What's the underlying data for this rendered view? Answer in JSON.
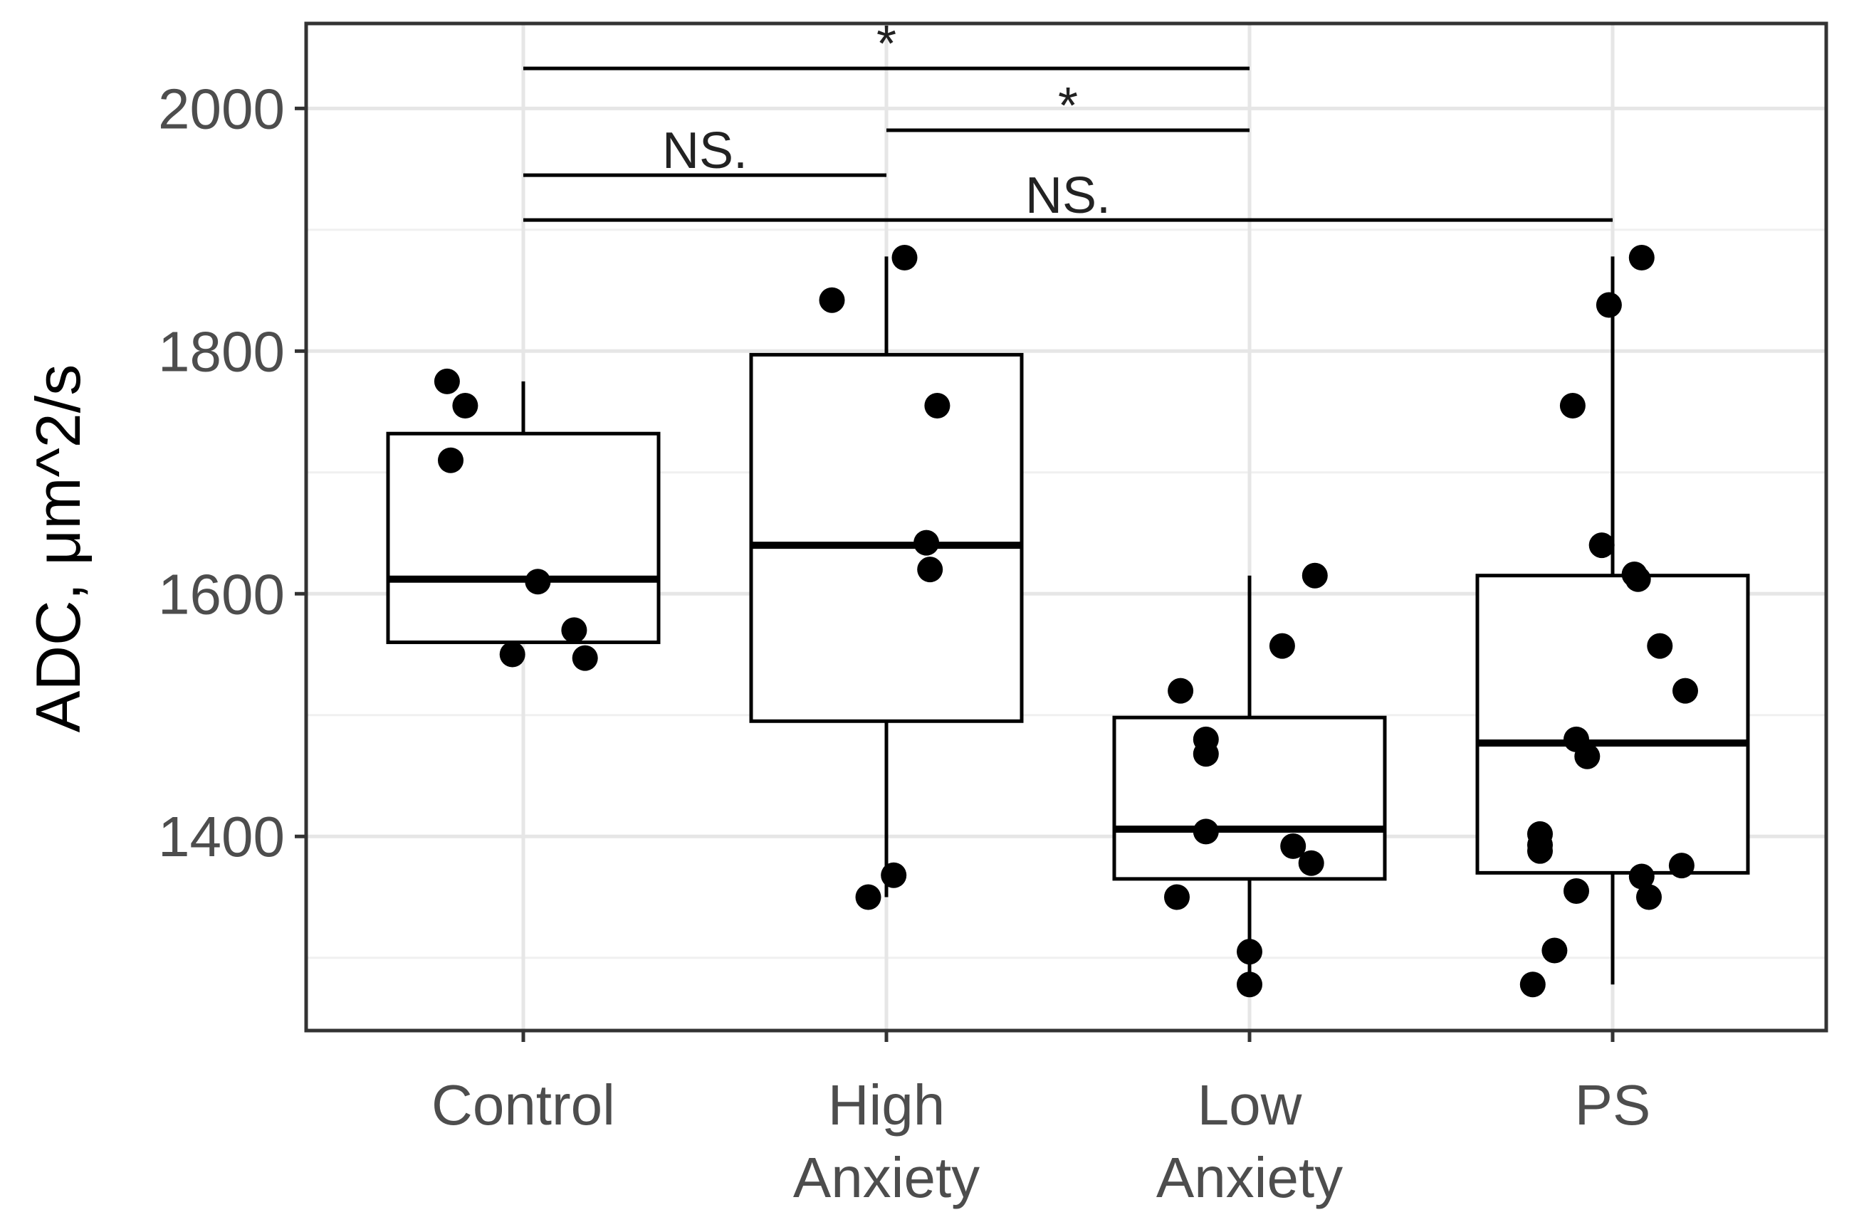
{
  "chart_data": {
    "type": "box",
    "xlabel": "",
    "ylabel": "ADC, μm^2/s",
    "ylim": [
      1240,
      2070
    ],
    "yticks": [
      1400,
      1600,
      1800,
      2000
    ],
    "yminor": [
      1300,
      1500,
      1700,
      1900
    ],
    "grid": true,
    "categories": [
      {
        "key": "control",
        "lines": [
          "Control"
        ]
      },
      {
        "key": "high",
        "lines": [
          "High",
          "Anxiety"
        ]
      },
      {
        "key": "low",
        "lines": [
          "Low",
          "Anxiety"
        ]
      },
      {
        "key": "ps",
        "lines": [
          "PS"
        ]
      }
    ],
    "boxes": [
      {
        "category": "Control",
        "q1": 1560,
        "median": 1612,
        "q3": 1732,
        "whisker_low": 1560,
        "whisker_high": 1775
      },
      {
        "category": "High Anxiety",
        "q1": 1495,
        "median": 1640,
        "q3": 1797,
        "whisker_low": 1350,
        "whisker_high": 1878
      },
      {
        "category": "Low Anxiety",
        "q1": 1365,
        "median": 1406,
        "q3": 1498,
        "whisker_low": 1278,
        "whisker_high": 1615
      },
      {
        "category": "PS",
        "q1": 1370,
        "median": 1477,
        "q3": 1615,
        "whisker_low": 1278,
        "whisker_high": 1878
      }
    ],
    "points": [
      {
        "group": 0,
        "jitter": -0.21,
        "y": 1775
      },
      {
        "group": 0,
        "jitter": -0.16,
        "y": 1755
      },
      {
        "group": 0,
        "jitter": -0.2,
        "y": 1710
      },
      {
        "group": 0,
        "jitter": 0.04,
        "y": 1610
      },
      {
        "group": 0,
        "jitter": 0.14,
        "y": 1570
      },
      {
        "group": 0,
        "jitter": -0.03,
        "y": 1550
      },
      {
        "group": 0,
        "jitter": 0.17,
        "y": 1547
      },
      {
        "group": 1,
        "jitter": 0.05,
        "y": 1877
      },
      {
        "group": 1,
        "jitter": -0.15,
        "y": 1842
      },
      {
        "group": 1,
        "jitter": 0.14,
        "y": 1755
      },
      {
        "group": 1,
        "jitter": 0.11,
        "y": 1642
      },
      {
        "group": 1,
        "jitter": 0.12,
        "y": 1620
      },
      {
        "group": 1,
        "jitter": 0.02,
        "y": 1368
      },
      {
        "group": 1,
        "jitter": -0.05,
        "y": 1350
      },
      {
        "group": 2,
        "jitter": 0.18,
        "y": 1615
      },
      {
        "group": 2,
        "jitter": 0.09,
        "y": 1557
      },
      {
        "group": 2,
        "jitter": -0.19,
        "y": 1520
      },
      {
        "group": 2,
        "jitter": -0.12,
        "y": 1480
      },
      {
        "group": 2,
        "jitter": -0.12,
        "y": 1468
      },
      {
        "group": 2,
        "jitter": -0.12,
        "y": 1404
      },
      {
        "group": 2,
        "jitter": 0.12,
        "y": 1392
      },
      {
        "group": 2,
        "jitter": 0.17,
        "y": 1378
      },
      {
        "group": 2,
        "jitter": -0.2,
        "y": 1350
      },
      {
        "group": 2,
        "jitter": 0.0,
        "y": 1305
      },
      {
        "group": 2,
        "jitter": 0.0,
        "y": 1278
      },
      {
        "group": 3,
        "jitter": 0.08,
        "y": 1877
      },
      {
        "group": 3,
        "jitter": -0.01,
        "y": 1838
      },
      {
        "group": 3,
        "jitter": -0.11,
        "y": 1755
      },
      {
        "group": 3,
        "jitter": -0.03,
        "y": 1640
      },
      {
        "group": 3,
        "jitter": 0.06,
        "y": 1616
      },
      {
        "group": 3,
        "jitter": 0.07,
        "y": 1612
      },
      {
        "group": 3,
        "jitter": 0.13,
        "y": 1557
      },
      {
        "group": 3,
        "jitter": 0.2,
        "y": 1520
      },
      {
        "group": 3,
        "jitter": -0.1,
        "y": 1480
      },
      {
        "group": 3,
        "jitter": -0.07,
        "y": 1466
      },
      {
        "group": 3,
        "jitter": -0.2,
        "y": 1402
      },
      {
        "group": 3,
        "jitter": -0.2,
        "y": 1393
      },
      {
        "group": 3,
        "jitter": -0.2,
        "y": 1388
      },
      {
        "group": 3,
        "jitter": 0.19,
        "y": 1376
      },
      {
        "group": 3,
        "jitter": 0.08,
        "y": 1367
      },
      {
        "group": 3,
        "jitter": 0.1,
        "y": 1350
      },
      {
        "group": 3,
        "jitter": -0.1,
        "y": 1355
      },
      {
        "group": 3,
        "jitter": -0.16,
        "y": 1306
      },
      {
        "group": 3,
        "jitter": -0.22,
        "y": 1278
      }
    ],
    "significance": [
      {
        "from": 0,
        "to": 2,
        "y": 2033,
        "label": "*"
      },
      {
        "from": 1,
        "to": 2,
        "y": 1982,
        "label": "*"
      },
      {
        "from": 0,
        "to": 1,
        "y": 1945,
        "label": "NS."
      },
      {
        "from": 0,
        "to": 3,
        "y": 1908,
        "label": "NS."
      }
    ]
  }
}
